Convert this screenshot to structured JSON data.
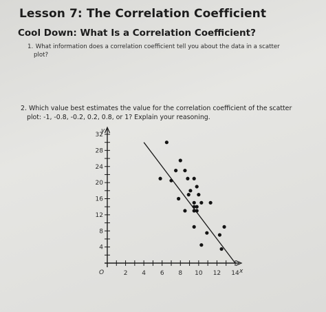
{
  "lesson_title": "Lesson 7: The Correlation Coefficient",
  "cooldown_title": "Cool Down: What Is a Correlation Coefficient?",
  "question1": {
    "number": "1.",
    "line1": "What information does a correlation coefficient tell you about the data in a scatter",
    "line2": "plot?"
  },
  "question2": {
    "number": "2.",
    "line1": "Which value best estimates the value for the correlation coefficient of the scatter",
    "line2": "plot: -1, -0.8, -0.2, 0.2, 0.8, or 1? Explain your reasoning."
  },
  "chart_data": {
    "type": "scatter",
    "x_axis_label": "x",
    "y_axis_label": "y",
    "origin_label": "O",
    "xlim": [
      0,
      14
    ],
    "ylim": [
      0,
      32
    ],
    "x_ticks": [
      "2",
      "4",
      "6",
      "8",
      "10",
      "12",
      "14"
    ],
    "y_ticks": [
      "4",
      "8",
      "12",
      "16",
      "20",
      "24",
      "28",
      "32"
    ],
    "points": [
      {
        "x": 6.5,
        "y": 30
      },
      {
        "x": 8,
        "y": 25.5
      },
      {
        "x": 7.5,
        "y": 23
      },
      {
        "x": 8.5,
        "y": 23
      },
      {
        "x": 5.8,
        "y": 21
      },
      {
        "x": 8.8,
        "y": 21
      },
      {
        "x": 9.5,
        "y": 21
      },
      {
        "x": 7,
        "y": 20.5
      },
      {
        "x": 9.8,
        "y": 19
      },
      {
        "x": 9.1,
        "y": 18
      },
      {
        "x": 8.9,
        "y": 17
      },
      {
        "x": 10,
        "y": 17
      },
      {
        "x": 7.8,
        "y": 16
      },
      {
        "x": 9.5,
        "y": 15
      },
      {
        "x": 10.3,
        "y": 15
      },
      {
        "x": 11.3,
        "y": 15
      },
      {
        "x": 9.5,
        "y": 14
      },
      {
        "x": 9.8,
        "y": 14
      },
      {
        "x": 8.5,
        "y": 13
      },
      {
        "x": 9.5,
        "y": 13
      },
      {
        "x": 9.8,
        "y": 13
      },
      {
        "x": 12.8,
        "y": 9
      },
      {
        "x": 9.5,
        "y": 9
      },
      {
        "x": 10.9,
        "y": 7.5
      },
      {
        "x": 12.3,
        "y": 7
      },
      {
        "x": 10.3,
        "y": 4.5
      },
      {
        "x": 12.5,
        "y": 3.5
      }
    ],
    "trend_line": [
      {
        "x": 4,
        "y": 30
      },
      {
        "x": 14,
        "y": 0
      }
    ],
    "grid": false
  }
}
